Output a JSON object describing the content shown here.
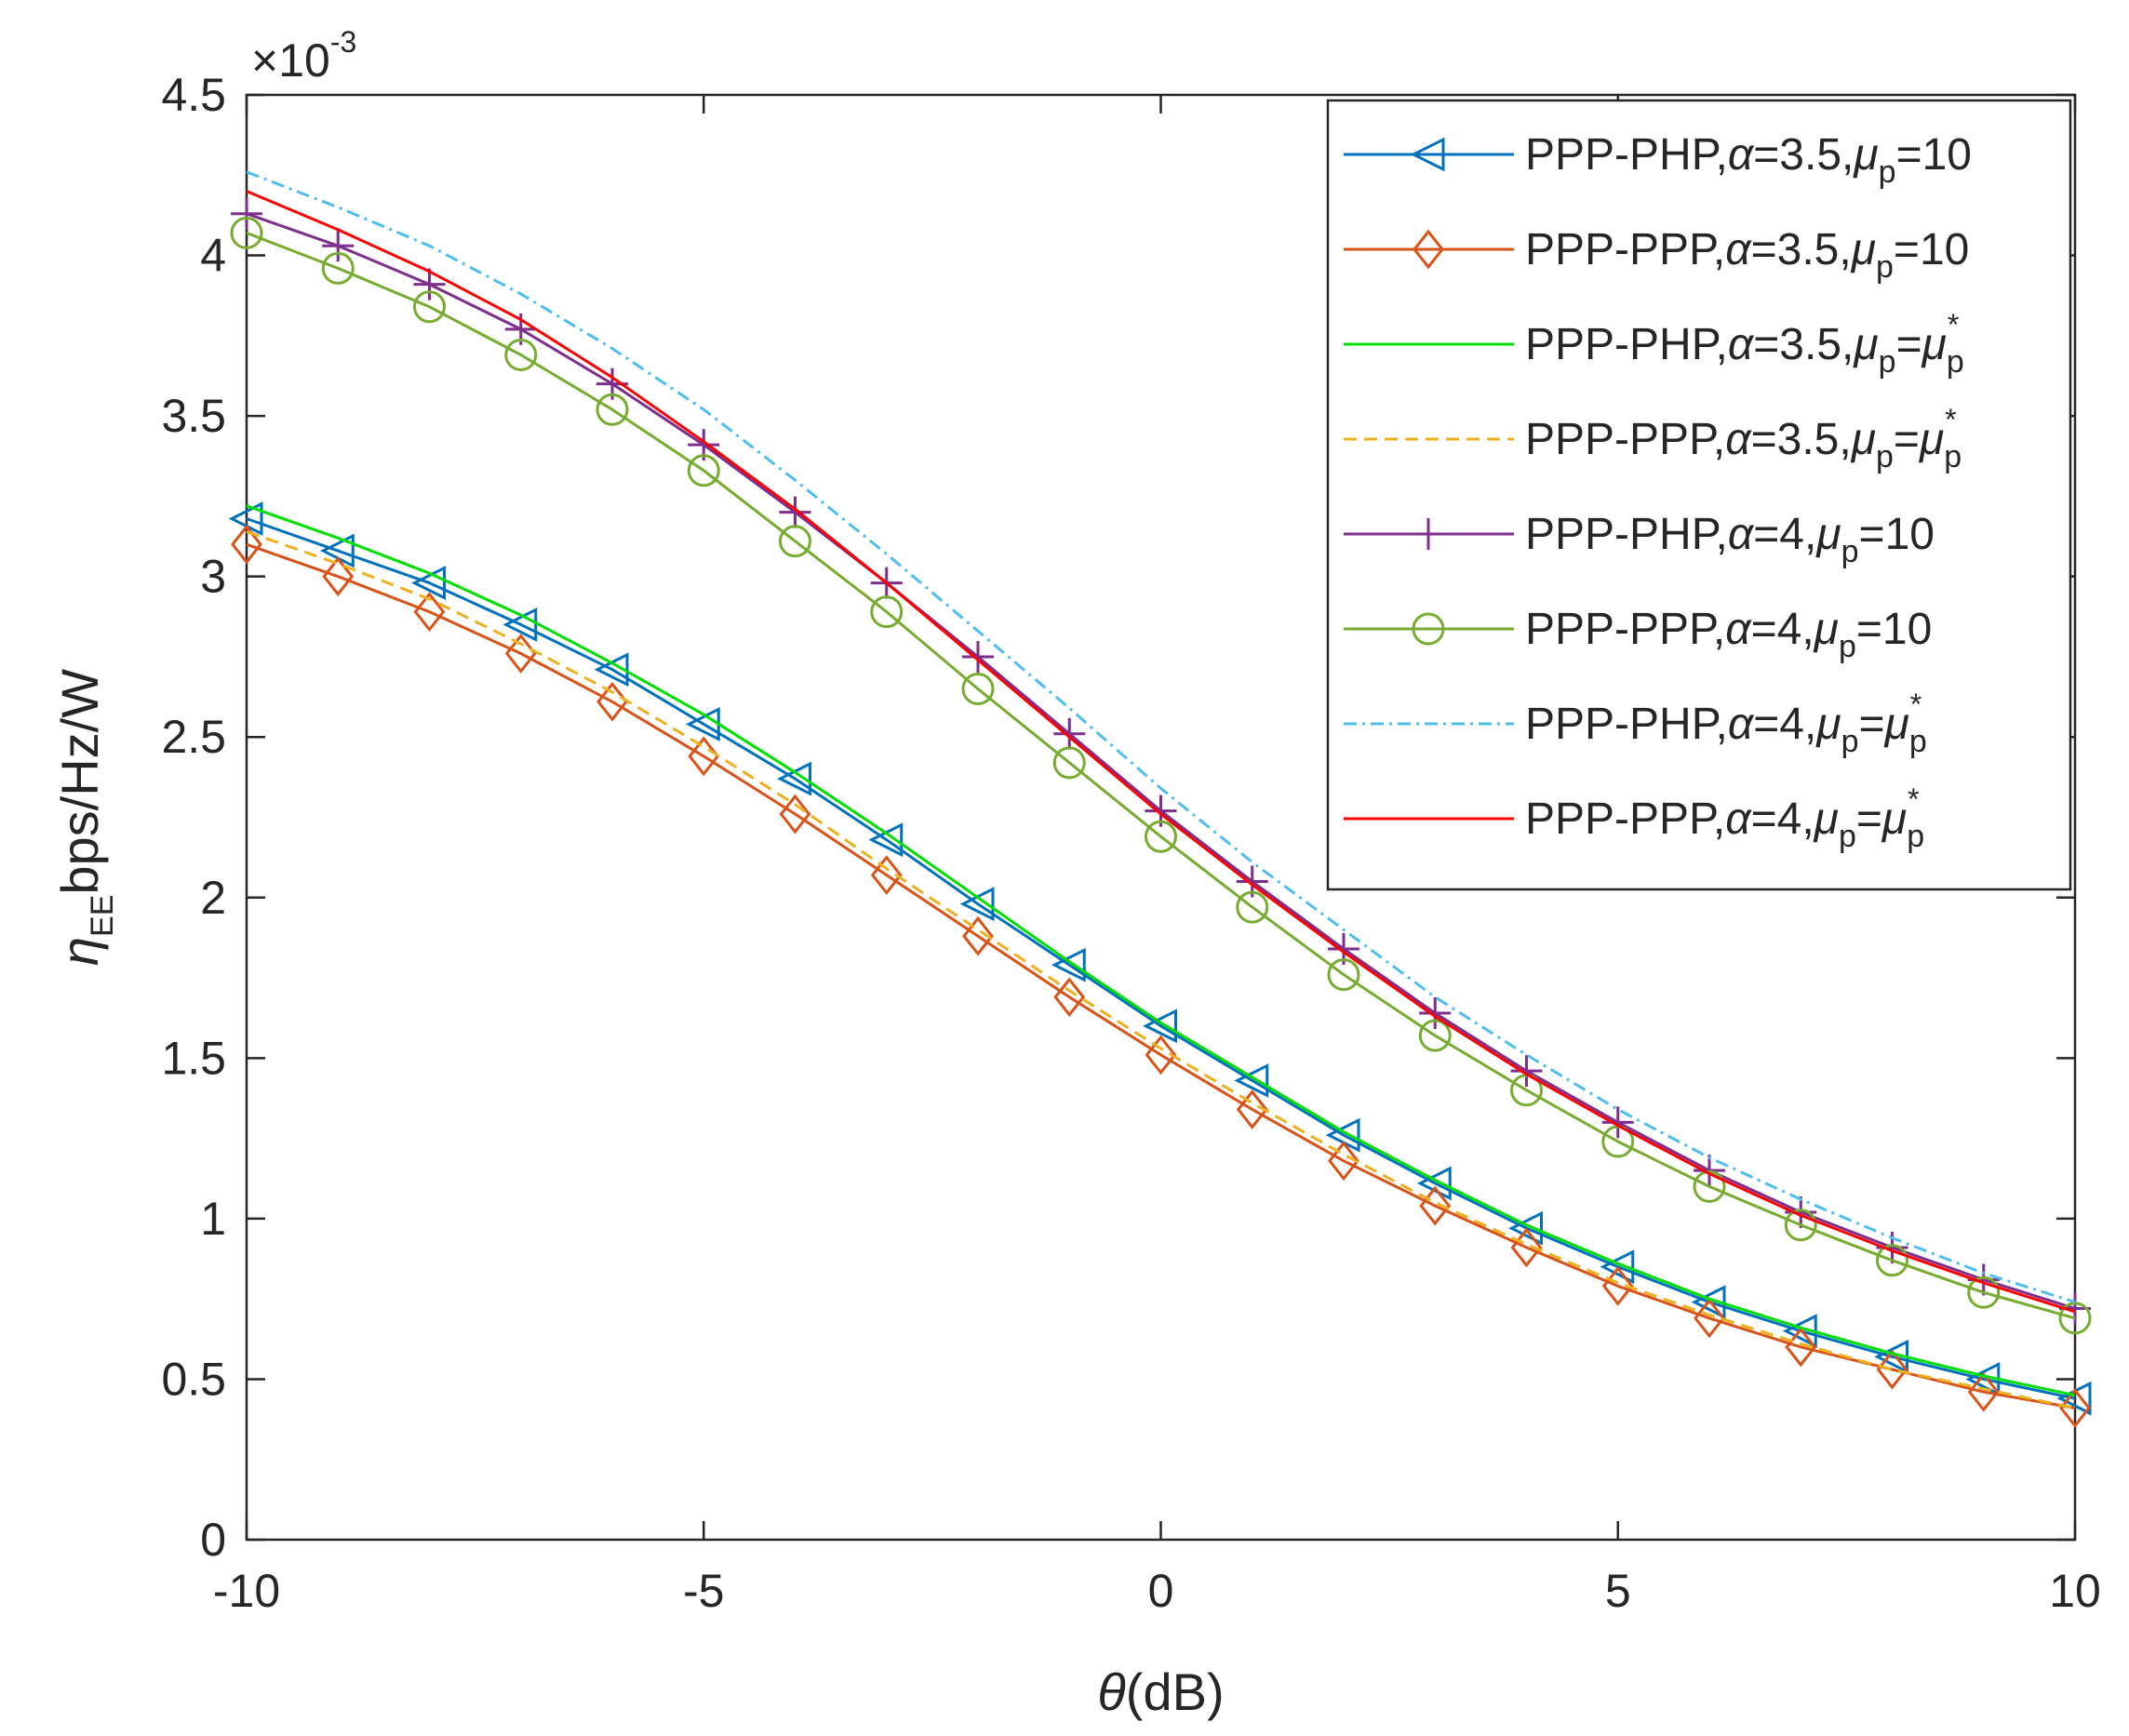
{
  "chart_data": {
    "type": "line",
    "title": "",
    "xlabel": {
      "symbol": "θ",
      "text": "(dB)"
    },
    "ylabel": {
      "symbol": "η",
      "sub": "EE",
      "text": "bps/Hz/W"
    },
    "y_exponent_label": {
      "base": "×10",
      "exp": "-3"
    },
    "xlim": [
      -10,
      10
    ],
    "ylim": [
      0,
      4.5
    ],
    "x_ticks": [
      -10,
      -5,
      0,
      5,
      10
    ],
    "x_tick_labels": [
      "-10",
      "-5",
      "0",
      "5",
      "10"
    ],
    "y_ticks": [
      0,
      0.5,
      1,
      1.5,
      2,
      2.5,
      3,
      3.5,
      4,
      4.5
    ],
    "y_tick_labels": [
      "0",
      "0.5",
      "1",
      "1.5",
      "2",
      "2.5",
      "3",
      "3.5",
      "4",
      "4.5"
    ],
    "grid": false,
    "legend_position": "top-right",
    "x": [
      -10,
      -9,
      -8,
      -7,
      -6,
      -5,
      -4,
      -3,
      -2,
      -1,
      0,
      1,
      2,
      3,
      4,
      5,
      6,
      7,
      8,
      9,
      10
    ],
    "series": [
      {
        "name": "PPP-PHP,α=3.5,μp=10",
        "label": {
          "pre": "PPP-PHP,",
          "greek": "α",
          "mid": "=3.5,",
          "mu": "μ",
          "sub": "p",
          "eq": "=",
          "post": "10",
          "star": ""
        },
        "color": "#0072BD",
        "dash": "solid",
        "marker": "triangle-left",
        "values": [
          3.18,
          3.08,
          2.98,
          2.85,
          2.71,
          2.54,
          2.37,
          2.18,
          1.98,
          1.79,
          1.6,
          1.43,
          1.26,
          1.11,
          0.97,
          0.85,
          0.74,
          0.65,
          0.57,
          0.5,
          0.44
        ]
      },
      {
        "name": "PPP-PPP,α=3.5,μp=10",
        "label": {
          "pre": "PPP-PPP,",
          "greek": "α",
          "mid": "=3.5,",
          "mu": "μ",
          "sub": "p",
          "eq": "=",
          "post": "10",
          "star": ""
        },
        "color": "#D95319",
        "dash": "solid",
        "marker": "diamond",
        "values": [
          3.1,
          3.0,
          2.89,
          2.76,
          2.61,
          2.44,
          2.26,
          2.07,
          1.88,
          1.69,
          1.51,
          1.34,
          1.18,
          1.04,
          0.91,
          0.79,
          0.69,
          0.6,
          0.53,
          0.46,
          0.41
        ]
      },
      {
        "name": "PPP-PHP,α=3.5,μp=μp*",
        "label": {
          "pre": "PPP-PHP,",
          "greek": "α",
          "mid": "=3.5,",
          "mu": "μ",
          "sub": "p",
          "eq": "=",
          "post": "μ",
          "star": "*"
        },
        "color": "#00E000",
        "dash": "solid",
        "marker": "none",
        "values": [
          3.22,
          3.12,
          3.01,
          2.88,
          2.73,
          2.57,
          2.39,
          2.2,
          2.0,
          1.8,
          1.61,
          1.44,
          1.27,
          1.12,
          0.98,
          0.86,
          0.75,
          0.66,
          0.58,
          0.51,
          0.45
        ]
      },
      {
        "name": "PPP-PPP,α=3.5,μp=μp*",
        "label": {
          "pre": "PPP-PPP,",
          "greek": "α",
          "mid": "=3.5,",
          "mu": "μ",
          "sub": "p",
          "eq": "=",
          "post": "μ",
          "star": "*"
        },
        "color": "#EDB120",
        "dash": "dashed",
        "marker": "none",
        "values": [
          3.14,
          3.04,
          2.93,
          2.79,
          2.64,
          2.47,
          2.29,
          2.09,
          1.9,
          1.71,
          1.53,
          1.36,
          1.2,
          1.05,
          0.92,
          0.8,
          0.7,
          0.61,
          0.53,
          0.47,
          0.41
        ]
      },
      {
        "name": "PPP-PHP,α=4,μp=10",
        "label": {
          "pre": "PPP-PHP,",
          "greek": "α",
          "mid": "=4,",
          "mu": "μ",
          "sub": "p",
          "eq": "=",
          "post": "10",
          "star": ""
        },
        "color": "#7E2F8E",
        "dash": "solid",
        "marker": "plus",
        "values": [
          4.13,
          4.03,
          3.91,
          3.77,
          3.6,
          3.41,
          3.2,
          2.98,
          2.75,
          2.51,
          2.27,
          2.05,
          1.84,
          1.64,
          1.46,
          1.3,
          1.15,
          1.02,
          0.91,
          0.81,
          0.72
        ]
      },
      {
        "name": "PPP-PPP,α=4,μp=10",
        "label": {
          "pre": "PPP-PPP,",
          "greek": "α",
          "mid": "=4,",
          "mu": "μ",
          "sub": "p",
          "eq": "=",
          "post": "10",
          "star": ""
        },
        "color": "#77AC30",
        "dash": "solid",
        "marker": "circle",
        "values": [
          4.07,
          3.96,
          3.84,
          3.69,
          3.52,
          3.33,
          3.11,
          2.89,
          2.65,
          2.42,
          2.19,
          1.97,
          1.76,
          1.57,
          1.4,
          1.24,
          1.1,
          0.98,
          0.87,
          0.77,
          0.69
        ]
      },
      {
        "name": "PPP-PHP,α=4,μp=μp*",
        "label": {
          "pre": "PPP-PHP,",
          "greek": "α",
          "mid": "=4,",
          "mu": "μ",
          "sub": "p",
          "eq": "=",
          "post": "μ",
          "star": "*"
        },
        "color": "#4DBEEE",
        "dash": "dashdot",
        "marker": "none",
        "values": [
          4.26,
          4.15,
          4.03,
          3.88,
          3.71,
          3.52,
          3.3,
          3.07,
          2.83,
          2.59,
          2.34,
          2.11,
          1.9,
          1.69,
          1.51,
          1.34,
          1.19,
          1.06,
          0.94,
          0.83,
          0.74
        ]
      },
      {
        "name": "PPP-PPP,α=4,μp=μp*",
        "label": {
          "pre": "PPP-PPP,",
          "greek": "α",
          "mid": "=4,",
          "mu": "μ",
          "sub": "p",
          "eq": "=",
          "post": "μ",
          "star": "*"
        },
        "color": "#FF0000",
        "dash": "solid",
        "marker": "none",
        "values": [
          4.2,
          4.08,
          3.95,
          3.8,
          3.62,
          3.42,
          3.21,
          2.98,
          2.74,
          2.5,
          2.26,
          2.04,
          1.83,
          1.63,
          1.45,
          1.29,
          1.14,
          1.01,
          0.9,
          0.8,
          0.71
        ]
      }
    ]
  }
}
